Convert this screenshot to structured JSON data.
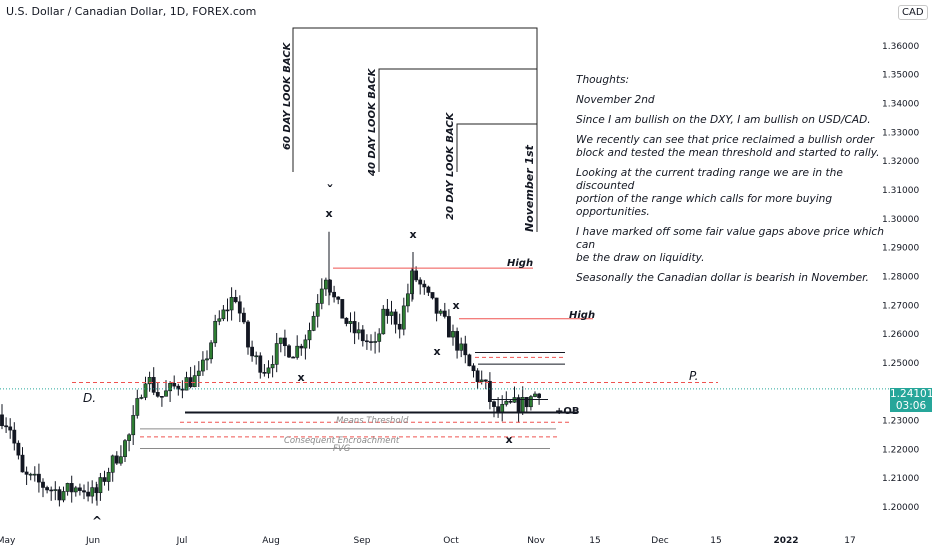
{
  "header": {
    "title": "U.S. Dollar / Canadian Dollar, 1D, FOREX.com",
    "currency": "CAD"
  },
  "thoughts": [
    "Thoughts:",
    "November 2nd",
    "Since I am bullish on the DXY, I am bullish on USD/CAD.",
    "We recently can see that price reclaimed a bullish order\nblock and tested the mean threshold and started to rally.",
    "Looking at the current trading range we are in the discounted\nportion of the range which calls for more buying opportunities.",
    "I have marked off some fair value gaps above price which can\nbe the draw on liquidity.",
    "Seasonally the Canadian dollar is bearish in November."
  ],
  "price_tag": {
    "price": "1.24101",
    "countdown": "03:06"
  },
  "annotations": {
    "lookback_60": "60 DAY LOOK BACK",
    "lookback_40": "40 DAY LOOK BACK",
    "lookback_20": "20 DAY LOOK BACK",
    "november_1st": "November 1st",
    "high_1": "High",
    "high_2": "High",
    "premium": "P.",
    "discount": "D.",
    "order_block": "+OB",
    "mean_threshold": "Means Threshold",
    "consequent_encroachment": "Consequent Encroachment",
    "fvg": "FVG"
  },
  "chart_data": {
    "type": "candlestick",
    "title": "U.S. Dollar / Canadian Dollar, 1D, FOREX.com",
    "y_ticks": [
      "1.36000",
      "1.35000",
      "1.34000",
      "1.33000",
      "1.32000",
      "1.31000",
      "1.30000",
      "1.29000",
      "1.28000",
      "1.27000",
      "1.26000",
      "1.25000",
      "1.23000",
      "1.22000",
      "1.21000",
      "1.20000"
    ],
    "x_ticks": [
      "May",
      "Jun",
      "Jul",
      "Aug",
      "Sep",
      "Oct",
      "Nov",
      "15",
      "Dec",
      "15",
      "2022",
      "17"
    ],
    "ylim": [
      1.1955,
      1.3655
    ],
    "current_price": 1.24101,
    "levels": {
      "high_1": 1.2829,
      "high_2": 1.2653,
      "premium_line": 1.2432,
      "current_dotted": 1.241,
      "order_block": 1.2328,
      "mean_threshold": 1.2315,
      "consequent_encroachment": 1.2264,
      "fvg": 1.2203,
      "fvg_upper_top": 1.2536,
      "fvg_upper_mid": 1.2519,
      "fvg_upper_bottom": 1.2496
    },
    "swing_markers": [
      "x",
      "x",
      "x",
      "x",
      "x",
      "x",
      "x"
    ],
    "grid": false
  }
}
